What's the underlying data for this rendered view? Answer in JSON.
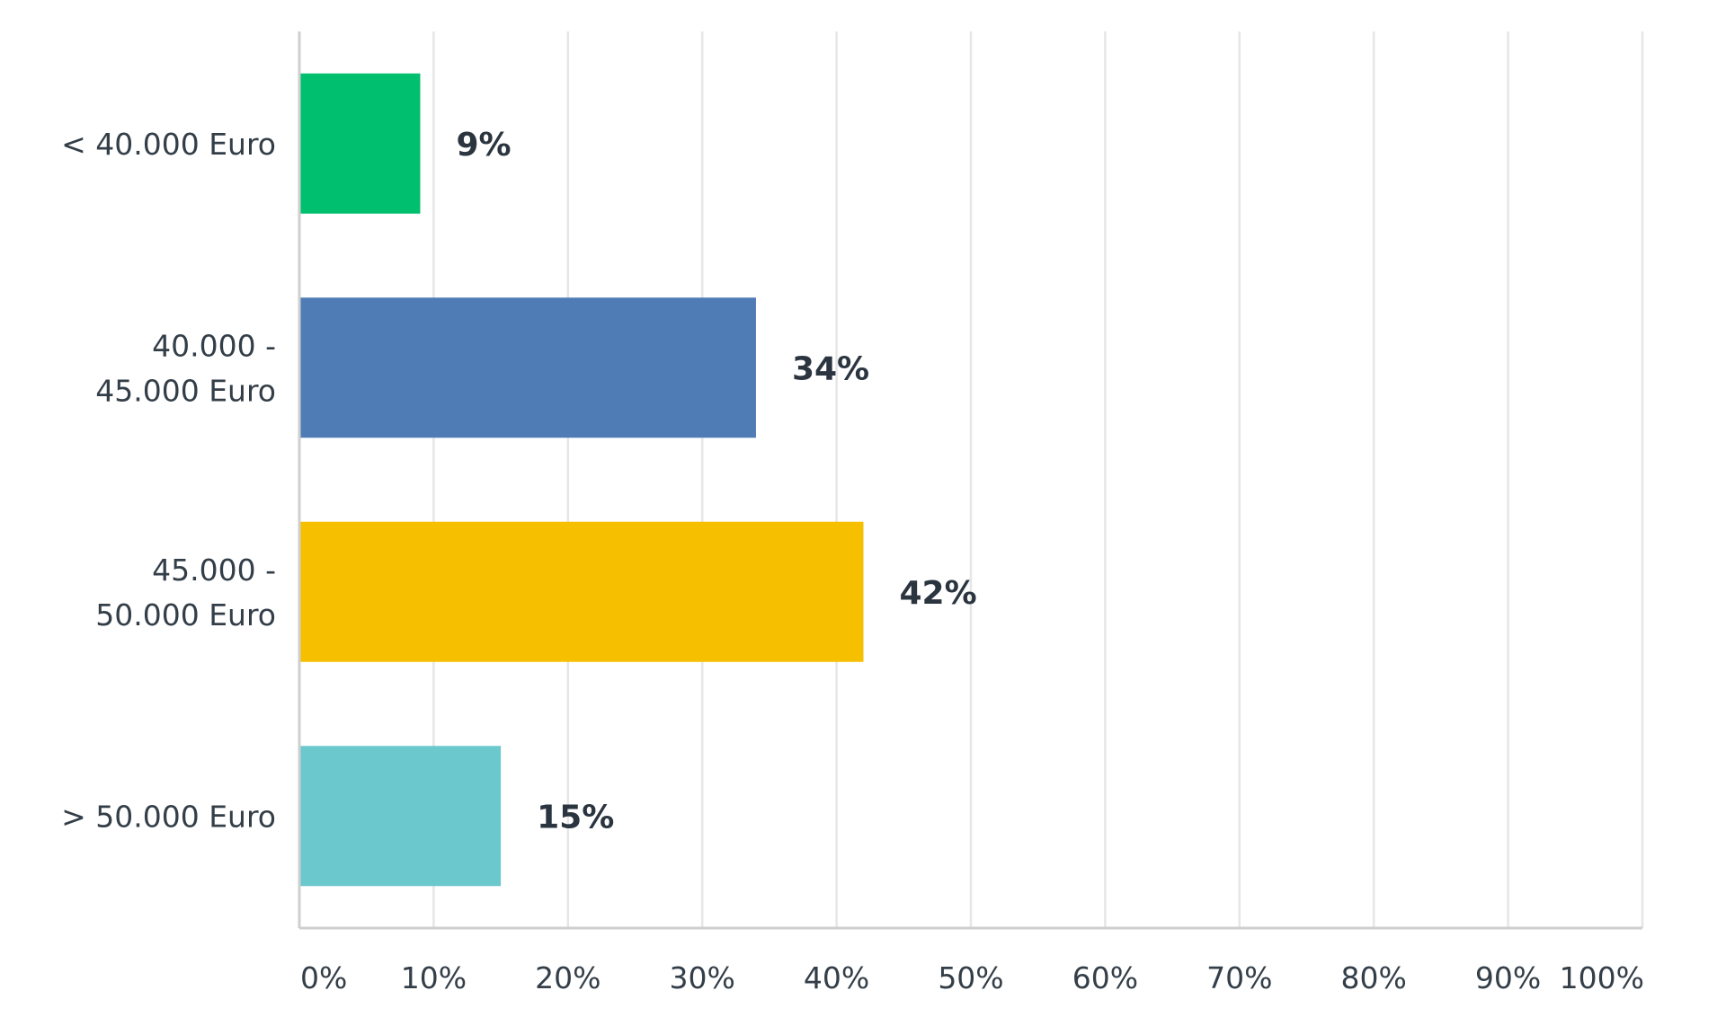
{
  "chart_data": {
    "type": "bar",
    "orientation": "horizontal",
    "categories": [
      [
        "< 40.000 Euro"
      ],
      [
        "40.000 -",
        "45.000 Euro"
      ],
      [
        "45.000 -",
        "50.000 Euro"
      ],
      [
        "> 50.000 Euro"
      ]
    ],
    "values": [
      9,
      34,
      42,
      15
    ],
    "value_labels": [
      "9%",
      "34%",
      "42%",
      "15%"
    ],
    "colors": [
      "#00bf6f",
      "#507cb6",
      "#f6bf00",
      "#6bc8cd"
    ],
    "xlim": [
      0,
      100
    ],
    "x_ticks": [
      0,
      10,
      20,
      30,
      40,
      50,
      60,
      70,
      80,
      90,
      100
    ],
    "x_tick_labels": [
      "0%",
      "10%",
      "20%",
      "30%",
      "40%",
      "50%",
      "60%",
      "70%",
      "80%",
      "90%",
      "100%"
    ],
    "grid": true,
    "title": "",
    "xlabel": "",
    "ylabel": ""
  }
}
